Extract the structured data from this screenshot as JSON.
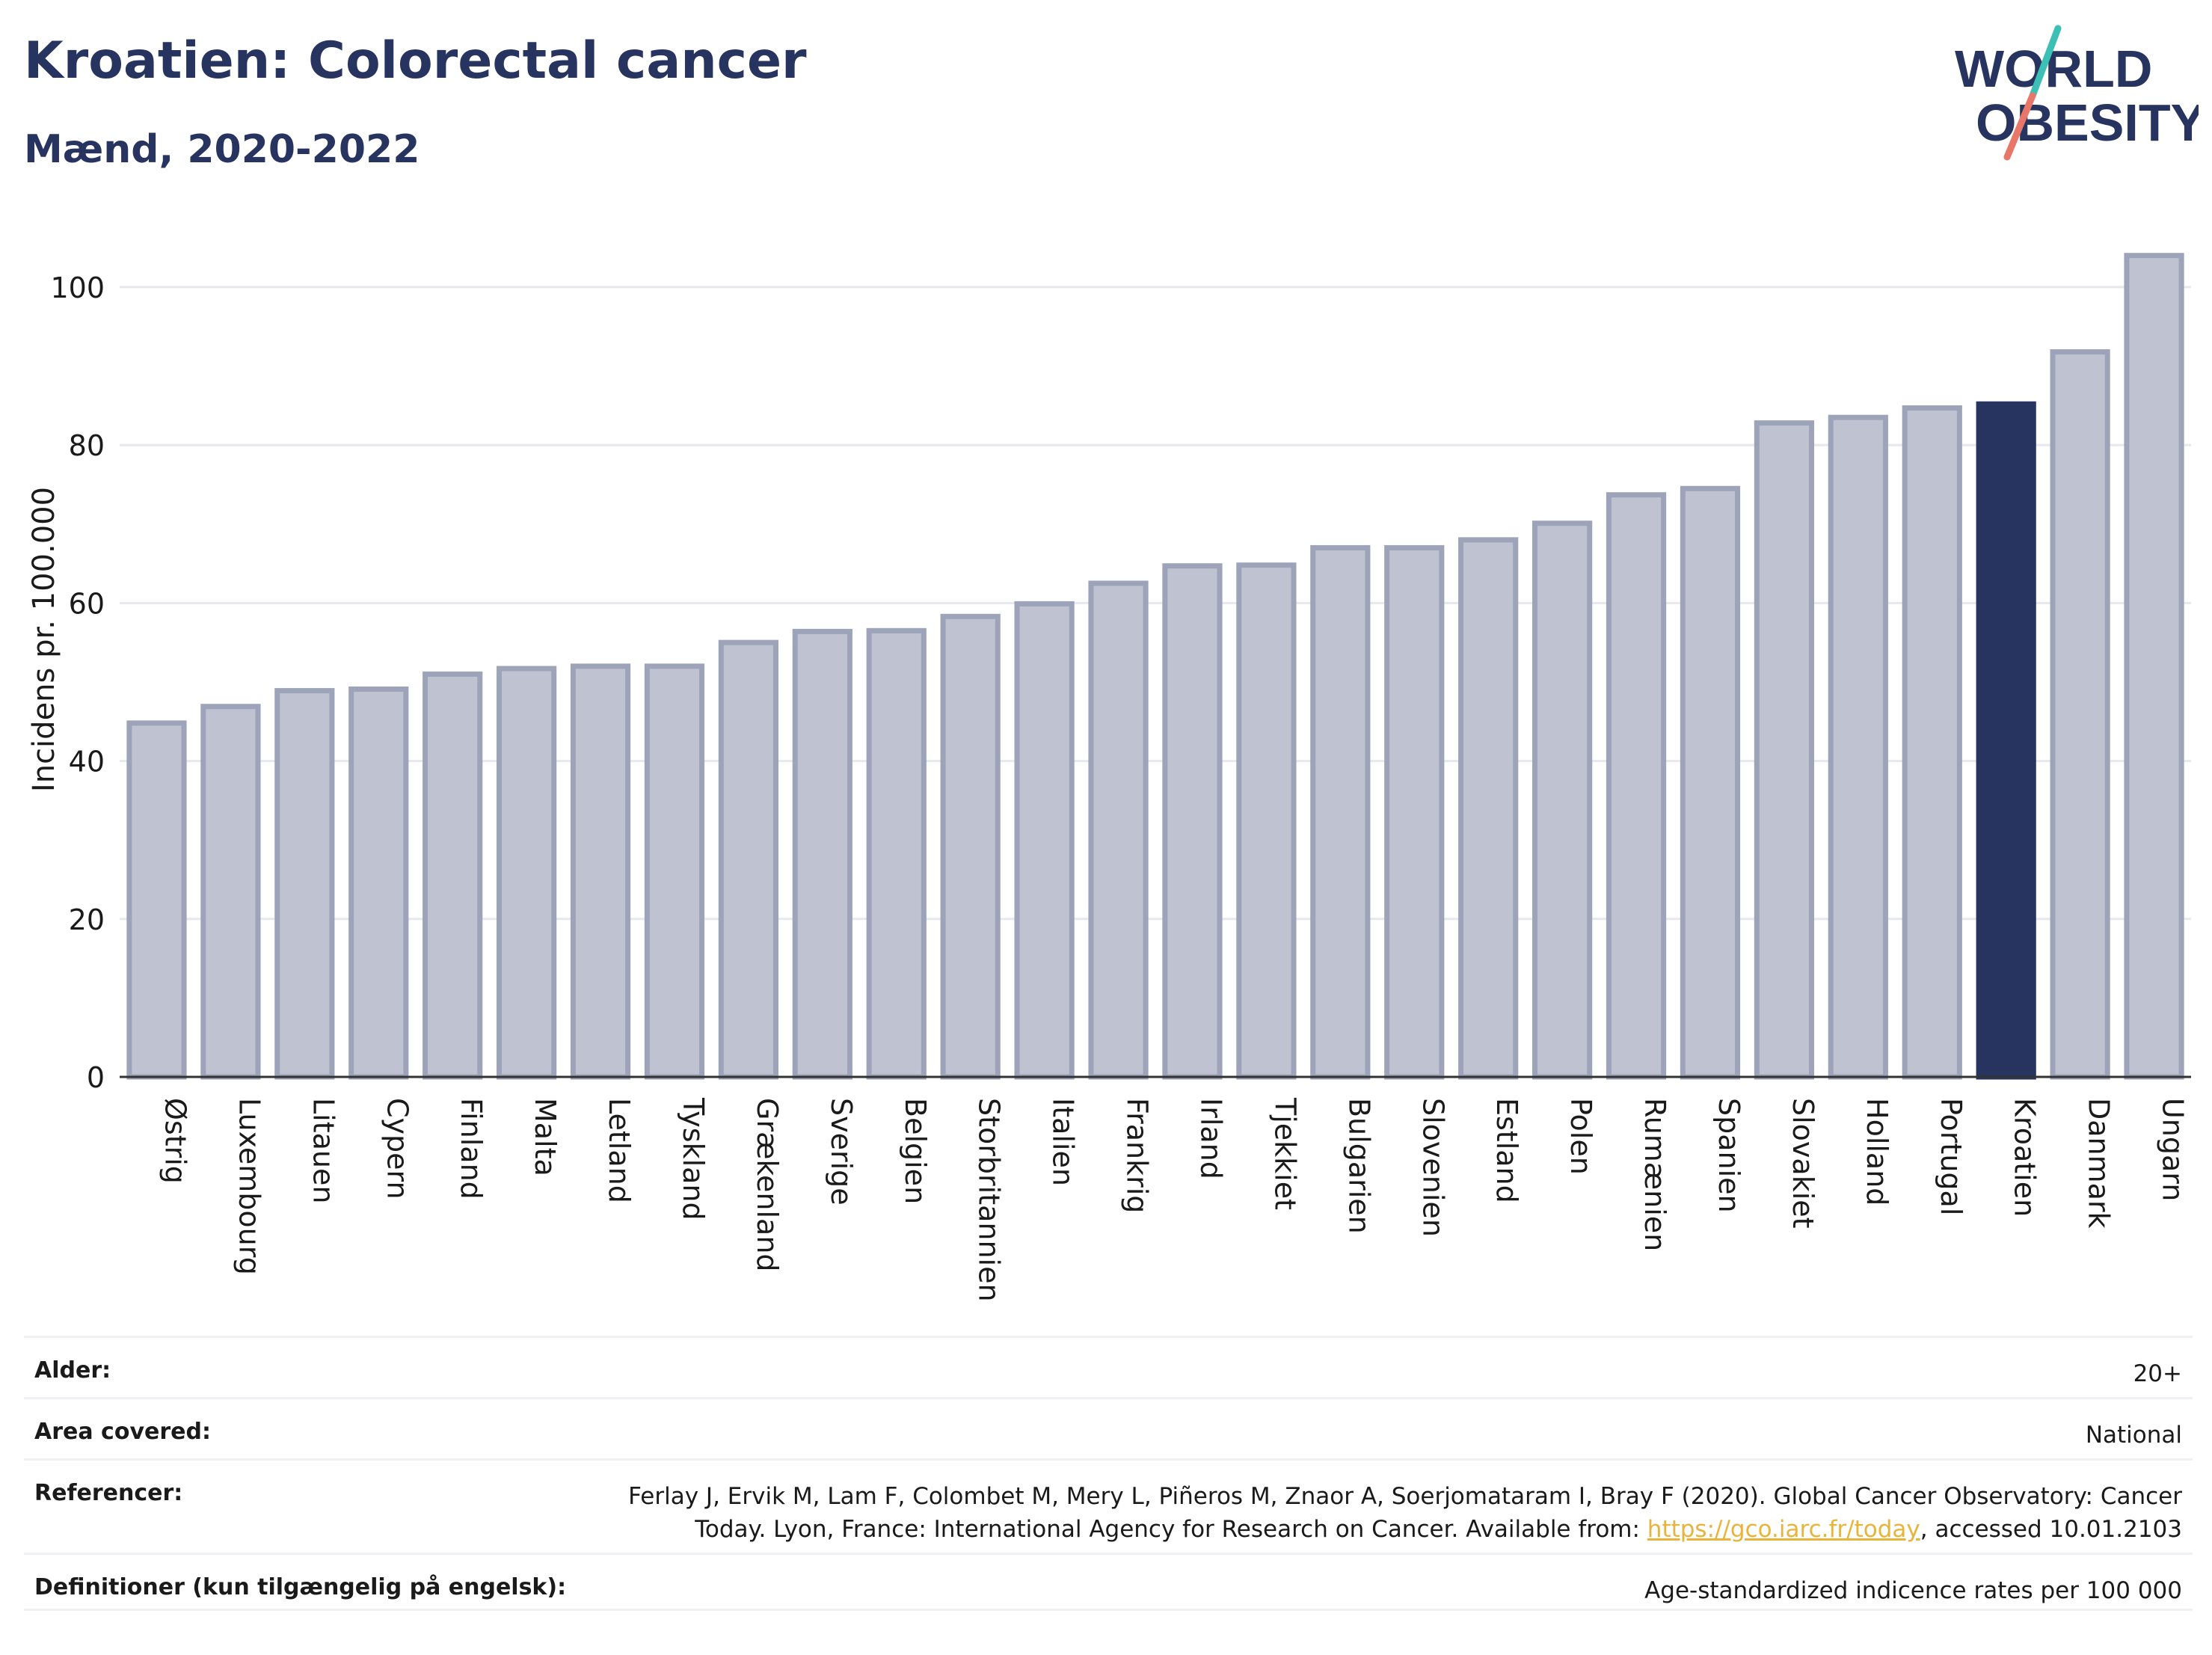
{
  "header": {
    "title": "Kroatien: Colorectal cancer",
    "subtitle": "Mænd, 2020-2022"
  },
  "logo": {
    "line1": "WORLD",
    "line2": "OBESITY"
  },
  "colors": {
    "title": "#283460",
    "bar_fill": "#bfc3d1",
    "bar_stroke": "#9da3b8",
    "highlight": "#283460",
    "logo_teal": "#3cbfb4",
    "logo_coral": "#e8776a",
    "link": "#e8b43c"
  },
  "chart_data": {
    "type": "bar",
    "ylabel": "Incidens pr. 100.000",
    "ylim": [
      0,
      107
    ],
    "yticks": [
      0,
      20,
      40,
      60,
      80,
      100
    ],
    "grid": true,
    "highlight": "Kroatien",
    "categories": [
      "Østrig",
      "Luxembourg",
      "Litauen",
      "Cypern",
      "Finland",
      "Malta",
      "Letland",
      "Tyskland",
      "Grækenland",
      "Sverige",
      "Belgien",
      "Storbritannien",
      "Italien",
      "Frankrig",
      "Irland",
      "Tjekkiet",
      "Bulgarien",
      "Slovenien",
      "Estland",
      "Polen",
      "Rumænien",
      "Spanien",
      "Slovakiet",
      "Holland",
      "Portugal",
      "Kroatien",
      "Danmark",
      "Ungarn"
    ],
    "values": [
      44.8,
      46.9,
      48.9,
      49.1,
      51.0,
      51.7,
      52.0,
      52.0,
      55.0,
      56.4,
      56.5,
      58.3,
      59.9,
      62.5,
      64.7,
      64.8,
      67.0,
      67.0,
      68.0,
      70.1,
      73.7,
      74.5,
      82.8,
      83.5,
      84.7,
      85.2,
      91.8,
      104.0
    ]
  },
  "meta": {
    "age_label": "Alder:",
    "age_value": "20+",
    "area_label": "Area covered:",
    "area_value": "National",
    "ref_label": "Referencer:",
    "ref_line1": "Ferlay J, Ervik M, Lam F, Colombet M, Mery L, Piñeros M, Znaor A, Soerjomataram I, Bray F (2020). Global Cancer Observatory: Cancer",
    "ref_line2_pre": "Today. Lyon, France: International Agency for Research on Cancer. Available from: ",
    "ref_link": "https://gco.iarc.fr/today",
    "ref_line2_post": ", accessed 10.01.2103",
    "def_label": "Definitioner (kun tilgængelig på engelsk):",
    "def_value": "Age-standardized indicence rates per 100 000"
  }
}
